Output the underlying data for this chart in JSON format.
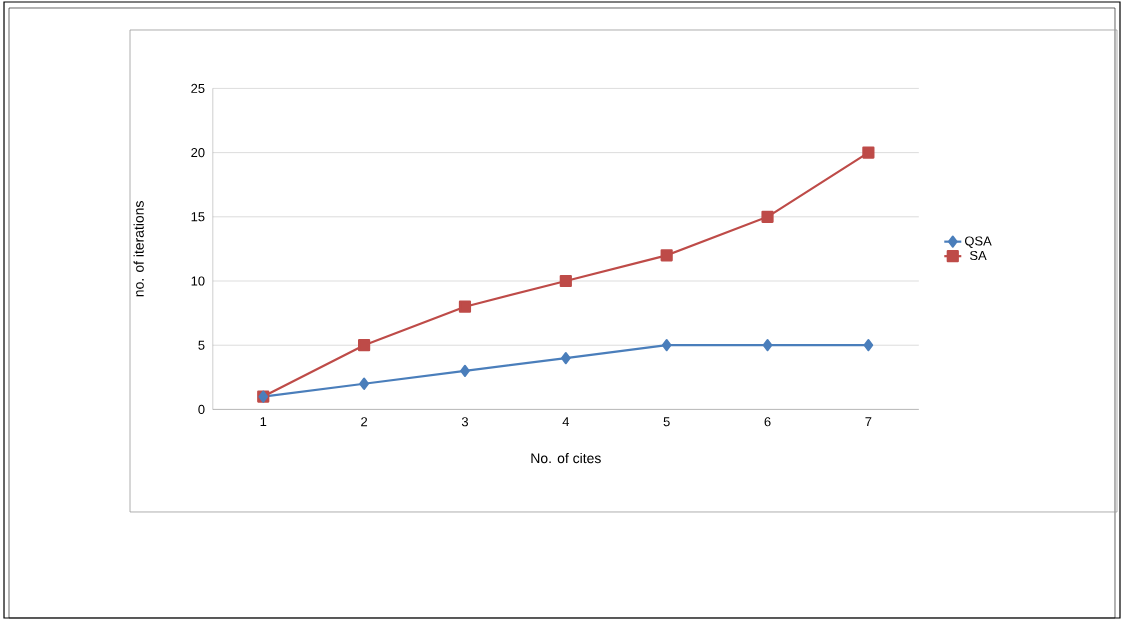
{
  "chart_data": {
    "type": "line",
    "xlabel": "No. of cites",
    "ylabel": "no. of iterations",
    "categories": [
      "1",
      "2",
      "3",
      "4",
      "5",
      "6",
      "7"
    ],
    "series": [
      {
        "name": "QSA",
        "color": "#4a7ebb",
        "marker": "diamond",
        "values": [
          1,
          2,
          3,
          4,
          5,
          5,
          5
        ]
      },
      {
        "name": "SA",
        "color": "#be4b48",
        "marker": "square",
        "values": [
          1,
          5,
          8,
          10,
          12,
          15,
          20
        ]
      }
    ],
    "ylim": [
      0,
      25
    ],
    "yticks": [
      0,
      5,
      10,
      15,
      20,
      25
    ],
    "grid": "y",
    "legend": "right",
    "line_style": "solid"
  }
}
